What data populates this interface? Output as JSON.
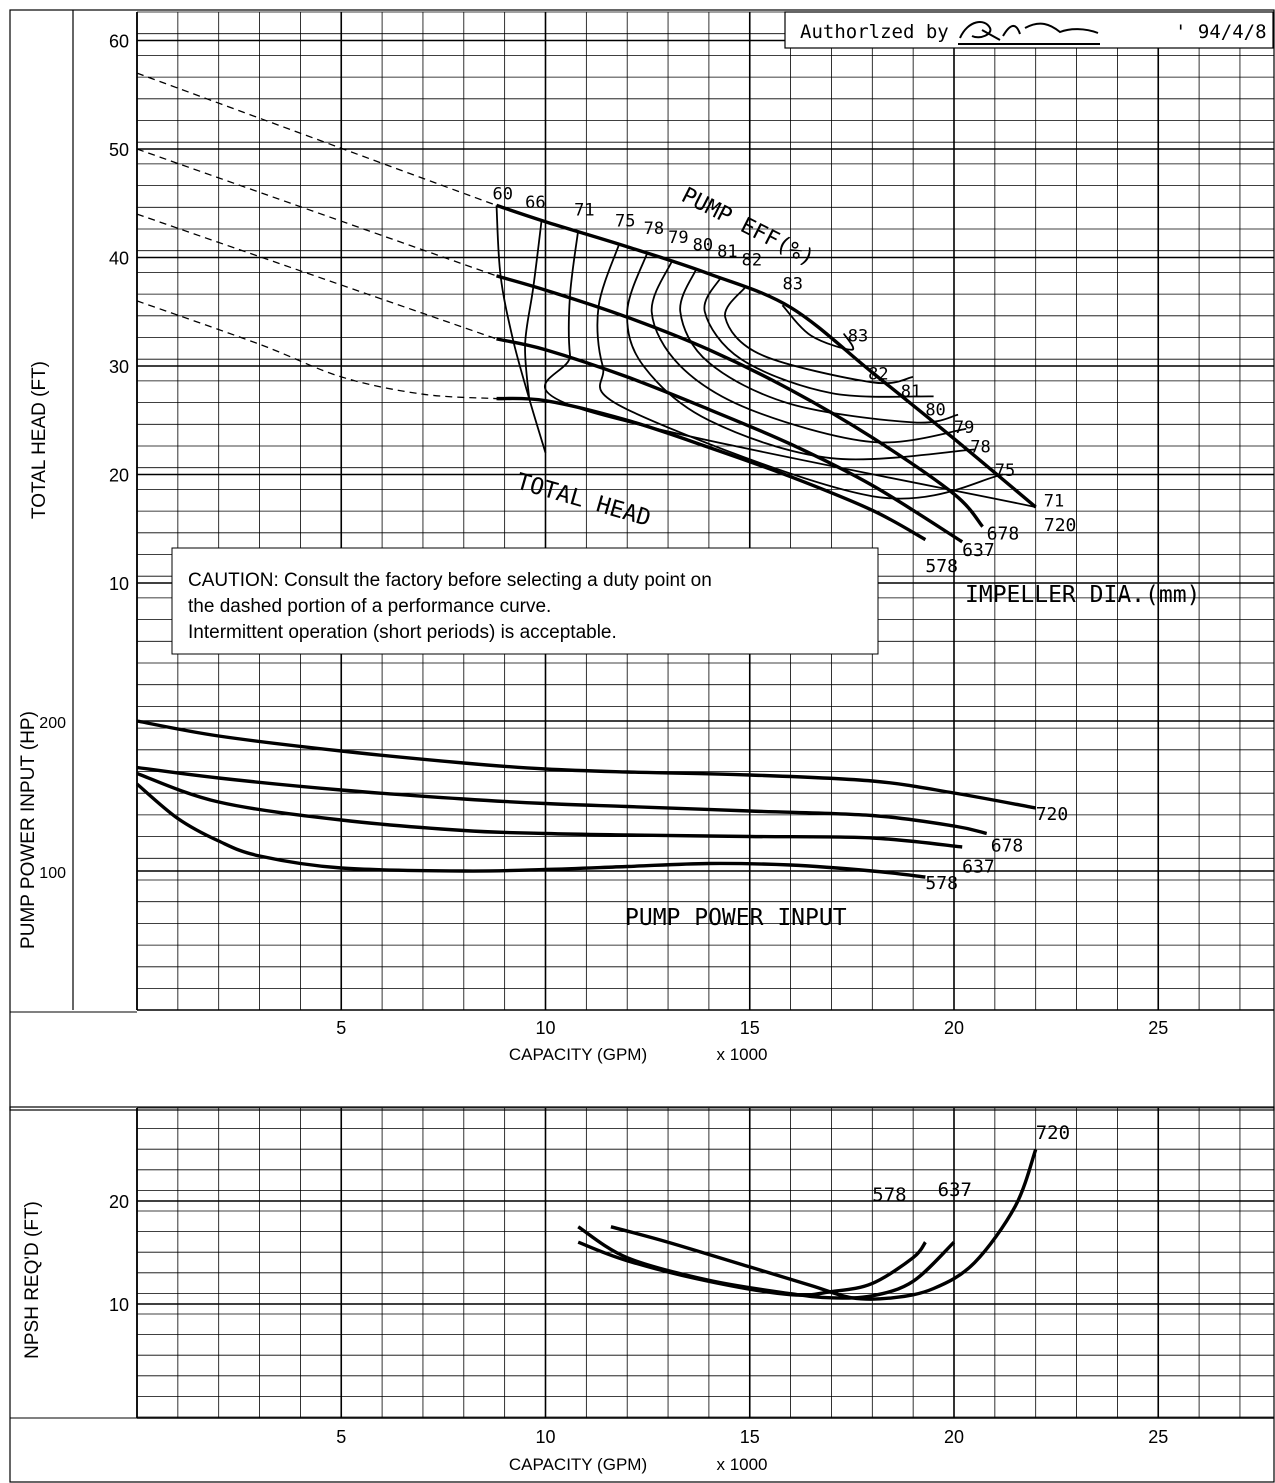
{
  "authorization": {
    "text": "Authorlzed by",
    "date": "' 94/4/8"
  },
  "caution": [
    "CAUTION: Consult the factory before selecting a duty point on",
    "the dashed portion of a performance curve.",
    "Intermittent operation (short periods) is acceptable."
  ],
  "chart_data": [
    {
      "type": "line",
      "title": "",
      "xlabel": "CAPACITY (GPM)",
      "xunit": "x 1000",
      "ylabel": "TOTAL HEAD (FT)",
      "xlim": [
        0,
        28
      ],
      "ylim": [
        0,
        62
      ],
      "xticks": [
        5,
        10,
        15,
        20,
        25
      ],
      "yticks": [
        10,
        20,
        30,
        40,
        50,
        60
      ],
      "grid": true,
      "curve_label": "TOTAL HEAD",
      "series_caption": "IMPELLER DIA.(mm)",
      "series": [
        {
          "name": "720",
          "dashed_x": [
            0,
            8.8
          ],
          "dashed_y": [
            57,
            44.8
          ],
          "x": [
            8.8,
            10,
            12,
            14,
            16,
            18,
            20,
            22
          ],
          "y": [
            44.8,
            43.3,
            41,
            38.5,
            35.4,
            29.4,
            23.3,
            17
          ]
        },
        {
          "name": "678",
          "dashed_x": [
            0,
            8.8
          ],
          "dashed_y": [
            50,
            38.3
          ],
          "x": [
            8.8,
            10,
            12,
            14,
            16,
            18,
            20,
            20.7
          ],
          "y": [
            38.3,
            37,
            34.5,
            31.5,
            27.8,
            23.4,
            18.2,
            15.2
          ]
        },
        {
          "name": "637",
          "dashed_x": [
            0,
            8.8
          ],
          "dashed_y": [
            44,
            32.5
          ],
          "x": [
            8.8,
            10,
            12,
            14,
            16,
            18,
            20.2
          ],
          "y": [
            32.5,
            31.5,
            29,
            26,
            22.8,
            19,
            13.8
          ]
        },
        {
          "name": "578",
          "dashed_x": [
            0,
            3,
            5,
            7,
            8.8
          ],
          "dashed_y": [
            36,
            32,
            29,
            27.4,
            27
          ],
          "x": [
            8.8,
            10,
            12,
            14,
            16,
            18,
            19.3
          ],
          "y": [
            27,
            26.8,
            25,
            22.5,
            19.8,
            16.7,
            14
          ]
        }
      ],
      "efficiency_label": "PUMP EFF(%)",
      "efficiency_contours": [
        {
          "label": "60",
          "x": [
            8.8,
            8.9,
            9.2,
            9.6,
            10
          ],
          "y": [
            44.8,
            38.3,
            32.5,
            27,
            22
          ]
        },
        {
          "label": "66",
          "x": [
            9.9,
            9.7,
            9.5,
            9.6
          ],
          "y": [
            43.3,
            37.2,
            32,
            27
          ]
        },
        {
          "label": "71",
          "x": [
            10.8,
            10.6,
            10.6,
            10.9,
            22
          ],
          "y": [
            42.5,
            36.5,
            31,
            26,
            17
          ]
        },
        {
          "label": "75",
          "x": [
            11.8,
            11.3,
            11.4,
            12,
            18,
            21.2
          ],
          "y": [
            41.2,
            35.5,
            30,
            26,
            18,
            20
          ]
        },
        {
          "label": "78",
          "x": [
            12.5,
            12,
            12.4,
            14,
            17,
            20.5
          ],
          "y": [
            40.5,
            35,
            30,
            25,
            21.5,
            22.3
          ]
        },
        {
          "label": "79",
          "x": [
            13.1,
            12.6,
            13.3,
            15,
            18,
            20.3
          ],
          "y": [
            39.7,
            35,
            30,
            26,
            23,
            24.2
          ]
        },
        {
          "label": "80",
          "x": [
            13.7,
            13.3,
            14,
            16,
            19,
            20.1
          ],
          "y": [
            39,
            35,
            30.3,
            26.5,
            24.8,
            25.5
          ]
        },
        {
          "label": "81",
          "x": [
            14.3,
            13.9,
            14.8,
            17,
            19.5
          ],
          "y": [
            38.2,
            35,
            30.6,
            27.5,
            27.2
          ]
        },
        {
          "label": "82",
          "x": [
            14.9,
            14.4,
            15.3,
            18,
            19
          ],
          "y": [
            37.3,
            34.5,
            31,
            28.5,
            29
          ]
        },
        {
          "label": "83",
          "x": [
            15.8,
            16.5,
            17.5,
            17.3
          ],
          "y": [
            35.6,
            32.8,
            31.5,
            33
          ]
        }
      ]
    },
    {
      "type": "line",
      "xlabel": "CAPACITY (GPM)",
      "xunit": "x 1000",
      "ylabel": "PUMP POWER INPUT (HP)",
      "xlim": [
        0,
        28
      ],
      "ylim": [
        0,
        250
      ],
      "xticks": [
        5,
        10,
        15,
        20,
        25
      ],
      "yticks": [
        100,
        200
      ],
      "grid": true,
      "curve_label": "PUMP POWER INPUT",
      "series": [
        {
          "name": "720",
          "x": [
            0,
            2,
            5,
            8,
            10,
            12,
            15,
            18,
            20,
            22
          ],
          "y": [
            200,
            190,
            180,
            172,
            168,
            166,
            164,
            160,
            152,
            142
          ]
        },
        {
          "name": "678",
          "x": [
            0,
            2,
            5,
            8,
            10,
            12,
            15,
            18,
            20,
            20.8
          ],
          "y": [
            169,
            162,
            154,
            148,
            145,
            143,
            140,
            137,
            130,
            125
          ]
        },
        {
          "name": "637",
          "x": [
            0,
            2,
            5,
            8,
            10,
            12,
            15,
            18,
            20.2
          ],
          "y": [
            165,
            146,
            134,
            127,
            125,
            124,
            123,
            122,
            116
          ]
        },
        {
          "name": "578",
          "x": [
            0,
            1,
            2,
            3,
            5,
            8,
            10,
            12,
            14,
            16,
            18,
            19.3
          ],
          "y": [
            158,
            135,
            120,
            110,
            102,
            100,
            101,
            103,
            105,
            104,
            100,
            96
          ]
        }
      ]
    },
    {
      "type": "line",
      "xlabel": "CAPACITY (GPM)",
      "xunit": "x 1000",
      "ylabel": "NPSH REQ'D (FT)",
      "xlim": [
        0,
        28
      ],
      "ylim": [
        0,
        27
      ],
      "xticks": [
        5,
        10,
        15,
        20,
        25
      ],
      "yticks": [
        10,
        20
      ],
      "grid": true,
      "series": [
        {
          "name": "720",
          "x": [
            11.6,
            13,
            15,
            16.5,
            17.5,
            18.5,
            19.5,
            20.5,
            21.5,
            22
          ],
          "y": [
            17.5,
            16,
            13.6,
            11.8,
            10.6,
            10.6,
            11.5,
            14,
            19.5,
            25
          ]
        },
        {
          "name": "637",
          "x": [
            10.8,
            12,
            14,
            16,
            17,
            18,
            19,
            20
          ],
          "y": [
            17.5,
            14.5,
            12.3,
            11,
            10.6,
            10.8,
            12.2,
            16
          ]
        },
        {
          "name": "578",
          "x": [
            10.8,
            12,
            14,
            16,
            17,
            18,
            19,
            19.3
          ],
          "y": [
            16,
            14.2,
            12.2,
            10.9,
            11.2,
            12,
            14.5,
            16
          ]
        }
      ]
    }
  ]
}
